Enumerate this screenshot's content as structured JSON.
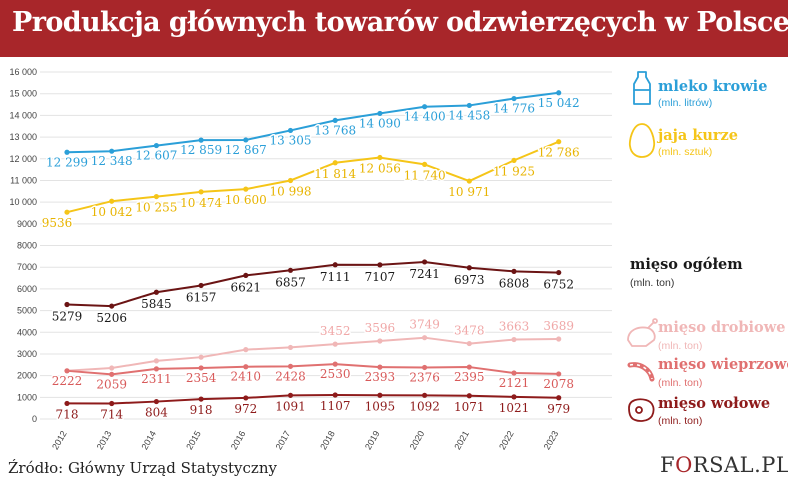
{
  "header": {
    "title": "Produkcja głównych towarów odzwierzęcych w Polsce"
  },
  "footer": {
    "source": "Źródło: Główny Urząd Statystyczny",
    "logo": "FORSAL.PL"
  },
  "chart_data": {
    "type": "line",
    "categories": [
      "2012",
      "2013",
      "2014",
      "2015",
      "2016",
      "2017",
      "2018",
      "2019",
      "2020",
      "2021",
      "2022",
      "2023"
    ],
    "yticks": [
      "0",
      "1000",
      "2000",
      "3000",
      "4000",
      "5000",
      "6000",
      "7000",
      "8000",
      "9000",
      "10 000",
      "11 000",
      "12 000",
      "13 000",
      "14 000",
      "15 000",
      "16 000"
    ],
    "ylim": [
      0,
      16000
    ],
    "grid": true,
    "legend": "right",
    "series": [
      {
        "name": "mleko krowie",
        "unit": "(mln. litrów)",
        "color": "#2b9fd8",
        "label_color": "#2b9fd8",
        "icon": "milk-bottle-icon",
        "values": [
          12299,
          12348,
          12607,
          12859,
          12867,
          13305,
          13768,
          14090,
          14400,
          14458,
          14776,
          15042
        ],
        "labels": [
          "12 299",
          "12 348",
          "12 607",
          "12 859",
          "12 867",
          "13 305",
          "13 768",
          "14 090",
          "14 400",
          "14 458",
          "14 776",
          "15 042"
        ]
      },
      {
        "name": "jaja kurze",
        "unit": "(mln. sztuk)",
        "color": "#f5c518",
        "label_color": "#e8b400",
        "icon": "egg-icon",
        "values": [
          9536,
          10042,
          10255,
          10474,
          10600,
          10998,
          11814,
          12056,
          11740,
          10971,
          11925,
          12786
        ],
        "labels": [
          "9536",
          "10 042",
          "10 255",
          "10 474",
          "10 600",
          "10 998",
          "11 814",
          "12 056",
          "11 740",
          "10 971",
          "11 925",
          "12 786"
        ]
      },
      {
        "name": "mięso ogółem",
        "unit": "(mln. ton)",
        "color": "#6b1414",
        "label_color": "#1a1a1a",
        "icon": "",
        "values": [
          5279,
          5206,
          5845,
          6157,
          6621,
          6857,
          7111,
          7107,
          7241,
          6973,
          6808,
          6752
        ],
        "labels": [
          "5279",
          "5206",
          "5845",
          "6157",
          "6621",
          "6857",
          "7111",
          "7107",
          "7241",
          "6973",
          "6808",
          "6752"
        ]
      },
      {
        "name": "mięso drobiowe",
        "unit": "(mln. ton)",
        "color": "#f0b7b7",
        "label_color": "#f0a8a8",
        "icon": "chicken-icon",
        "values": [
          2222,
          2350,
          2680,
          2850,
          3200,
          3300,
          3452,
          3596,
          3749,
          3478,
          3663,
          3689
        ],
        "labels": [
          "",
          "",
          "",
          "",
          "",
          "",
          "3452",
          "3596",
          "3749",
          "3478",
          "3663",
          "3689"
        ]
      },
      {
        "name": "mięso wieprzowe",
        "unit": "(mln. ton)",
        "color": "#e07070",
        "label_color": "#d85a5a",
        "icon": "sausage-icon",
        "values": [
          2222,
          2059,
          2311,
          2354,
          2410,
          2428,
          2530,
          2393,
          2376,
          2395,
          2121,
          2078
        ],
        "labels": [
          "2222",
          "2059",
          "2311",
          "2354",
          "2410",
          "2428",
          "2530",
          "2393",
          "2376",
          "2395",
          "2121",
          "2078"
        ]
      },
      {
        "name": "mięso wołowe",
        "unit": "(mln. ton)",
        "color": "#8e1b1b",
        "label_color": "#8e1b1b",
        "icon": "beef-icon",
        "values": [
          718,
          714,
          804,
          918,
          972,
          1091,
          1107,
          1095,
          1092,
          1071,
          1021,
          979
        ],
        "labels": [
          "718",
          "714",
          "804",
          "918",
          "972",
          "1091",
          "1107",
          "1095",
          "1092",
          "1071",
          "1021",
          "979"
        ]
      }
    ]
  }
}
